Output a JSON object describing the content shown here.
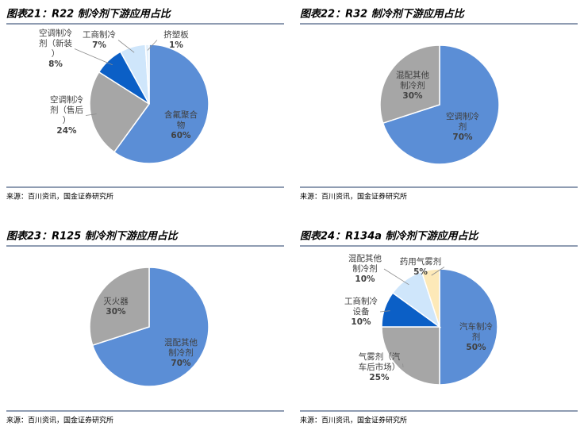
{
  "chart_data": [
    {
      "type": "pie",
      "title": "图表21：R22 制冷剂下游应用占比",
      "source": "来源：百川资讯，国金证券研究所",
      "categories": [
        "含氟聚合物",
        "空调制冷剂（售后）",
        "空调制冷剂（新装）",
        "工商制冷",
        "挤塑板"
      ],
      "values": [
        60,
        24,
        8,
        7,
        1
      ],
      "value_labels": [
        "60%",
        "24%",
        "8%",
        "7%",
        "1%"
      ],
      "colors": [
        "#5b8ed6",
        "#a6a6a6",
        "#0b5fc6",
        "#cfe6fb",
        "#e3f0fc"
      ]
    },
    {
      "type": "pie",
      "title": "图表22：R32 制冷剂下游应用占比",
      "source": "来源：百川资讯，国金证券研究所",
      "categories": [
        "空调制冷剂",
        "混配其他制冷剂"
      ],
      "values": [
        70,
        30
      ],
      "value_labels": [
        "70%",
        "30%"
      ],
      "colors": [
        "#5b8ed6",
        "#a6a6a6"
      ]
    },
    {
      "type": "pie",
      "title": "图表23：R125 制冷剂下游应用占比",
      "source": "来源：百川资讯，国金证券研究所",
      "categories": [
        "混配其他制冷剂",
        "灭火器"
      ],
      "values": [
        70,
        30
      ],
      "value_labels": [
        "70%",
        "30%"
      ],
      "colors": [
        "#5b8ed6",
        "#a6a6a6"
      ]
    },
    {
      "type": "pie",
      "title": "图表24：R134a 制冷剂下游应用占比",
      "source": "来源：百川资讯，国金证券研究所",
      "categories": [
        "汽车制冷剂",
        "气雾剂（汽车后市场）",
        "工商制冷设备",
        "混配其他制冷剂",
        "药用气雾剂"
      ],
      "values": [
        50,
        25,
        10,
        10,
        5
      ],
      "value_labels": [
        "50%",
        "25%",
        "10%",
        "10%",
        "5%"
      ],
      "colors": [
        "#5b8ed6",
        "#a6a6a6",
        "#0b5fc6",
        "#cfe6fb",
        "#fde9b8"
      ]
    }
  ]
}
